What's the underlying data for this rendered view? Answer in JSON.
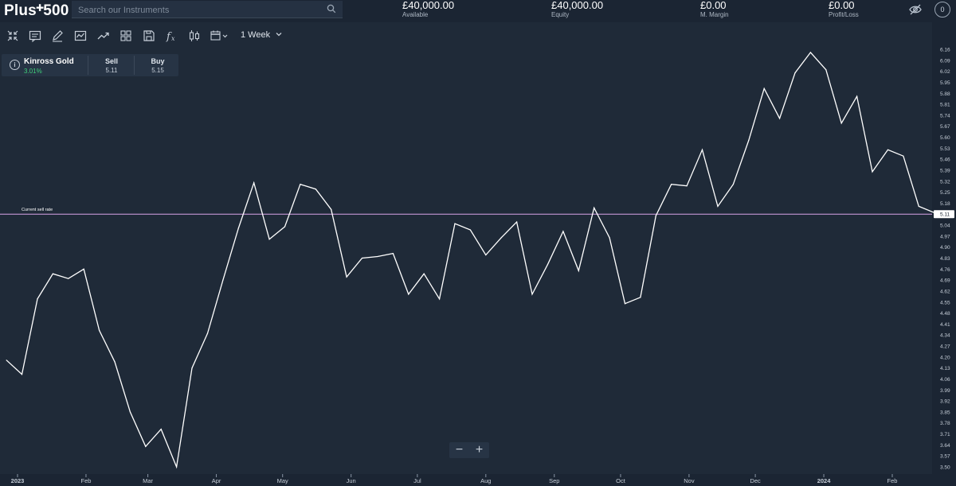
{
  "header": {
    "logo": "Plus500",
    "search_placeholder": "Search our Instruments",
    "metrics": [
      {
        "value": "£40,000.00",
        "label": "Available"
      },
      {
        "value": "£40,000.00",
        "label": "Equity"
      },
      {
        "value": "£0.00",
        "label": "M. Margin"
      },
      {
        "value": "£0.00",
        "label": "Profit/Loss"
      }
    ],
    "notifications_count": "0",
    "icons": [
      "search-icon",
      "eye-off-icon",
      "notification-badge"
    ]
  },
  "toolbar": {
    "icons": [
      "collapse-icon",
      "indicators-icon",
      "draw-icon",
      "chart-type-icon",
      "trend-icon",
      "layout-icon",
      "save-icon",
      "function-icon",
      "candles-icon",
      "calendar-icon"
    ],
    "period": "1 Week"
  },
  "instrument": {
    "name": "Kinross Gold",
    "change": "3.01%",
    "sell_label": "Sell",
    "sell_value": "5.11",
    "buy_label": "Buy",
    "buy_value": "5.15"
  },
  "chart_data": {
    "type": "line",
    "title": "",
    "ylim": [
      3.47,
      6.19
    ],
    "y_ticks": [
      "6.16",
      "6.09",
      "6.02",
      "5.95",
      "5.88",
      "5.81",
      "5.74",
      "5.67",
      "5.60",
      "5.53",
      "5.46",
      "5.39",
      "5.32",
      "5.25",
      "5.18",
      "5.11",
      "5.04",
      "4.97",
      "4.90",
      "4.83",
      "4.76",
      "4.69",
      "4.62",
      "4.55",
      "4.48",
      "4.41",
      "4.34",
      "4.27",
      "4.20",
      "4.13",
      "4.06",
      "3.99",
      "3.92",
      "3.85",
      "3.78",
      "3.71",
      "3.64",
      "3.57",
      "3.50"
    ],
    "x_ticks": [
      {
        "label": "2023",
        "date": "2023-01-01"
      },
      {
        "label": "Feb",
        "date": "2023-02-01"
      },
      {
        "label": "Mar",
        "date": "2023-03-01"
      },
      {
        "label": "Apr",
        "date": "2023-04-01"
      },
      {
        "label": "May",
        "date": "2023-05-01"
      },
      {
        "label": "Jun",
        "date": "2023-06-01"
      },
      {
        "label": "Jul",
        "date": "2023-07-01"
      },
      {
        "label": "Aug",
        "date": "2023-08-01"
      },
      {
        "label": "Sep",
        "date": "2023-09-01"
      },
      {
        "label": "Oct",
        "date": "2023-10-01"
      },
      {
        "label": "Nov",
        "date": "2023-11-01"
      },
      {
        "label": "Dec",
        "date": "2023-12-01"
      },
      {
        "label": "2024",
        "date": "2024-01-01"
      },
      {
        "label": "Feb",
        "date": "2024-02-01"
      }
    ],
    "series": [
      {
        "color": "#ffffff",
        "points": [
          {
            "x": "2022-12-27",
            "y": 4.18
          },
          {
            "x": "2023-01-03",
            "y": 4.09
          },
          {
            "x": "2023-01-10",
            "y": 4.57
          },
          {
            "x": "2023-01-17",
            "y": 4.73
          },
          {
            "x": "2023-01-24",
            "y": 4.7
          },
          {
            "x": "2023-01-31",
            "y": 4.76
          },
          {
            "x": "2023-02-07",
            "y": 4.37
          },
          {
            "x": "2023-02-14",
            "y": 4.17
          },
          {
            "x": "2023-02-21",
            "y": 3.85
          },
          {
            "x": "2023-02-28",
            "y": 3.63
          },
          {
            "x": "2023-03-07",
            "y": 3.74
          },
          {
            "x": "2023-03-14",
            "y": 3.5
          },
          {
            "x": "2023-03-21",
            "y": 4.13
          },
          {
            "x": "2023-03-28",
            "y": 4.35
          },
          {
            "x": "2023-04-04",
            "y": 4.69
          },
          {
            "x": "2023-04-11",
            "y": 5.02
          },
          {
            "x": "2023-04-18",
            "y": 5.31
          },
          {
            "x": "2023-04-25",
            "y": 4.95
          },
          {
            "x": "2023-05-02",
            "y": 5.03
          },
          {
            "x": "2023-05-09",
            "y": 5.3
          },
          {
            "x": "2023-05-16",
            "y": 5.27
          },
          {
            "x": "2023-05-23",
            "y": 5.14
          },
          {
            "x": "2023-05-30",
            "y": 4.71
          },
          {
            "x": "2023-06-06",
            "y": 4.83
          },
          {
            "x": "2023-06-13",
            "y": 4.84
          },
          {
            "x": "2023-06-20",
            "y": 4.86
          },
          {
            "x": "2023-06-27",
            "y": 4.6
          },
          {
            "x": "2023-07-04",
            "y": 4.73
          },
          {
            "x": "2023-07-11",
            "y": 4.57
          },
          {
            "x": "2023-07-18",
            "y": 5.05
          },
          {
            "x": "2023-07-25",
            "y": 5.01
          },
          {
            "x": "2023-08-01",
            "y": 4.85
          },
          {
            "x": "2023-08-08",
            "y": 4.96
          },
          {
            "x": "2023-08-15",
            "y": 5.06
          },
          {
            "x": "2023-08-22",
            "y": 4.6
          },
          {
            "x": "2023-08-29",
            "y": 4.79
          },
          {
            "x": "2023-09-05",
            "y": 5.0
          },
          {
            "x": "2023-09-12",
            "y": 4.75
          },
          {
            "x": "2023-09-19",
            "y": 5.15
          },
          {
            "x": "2023-09-26",
            "y": 4.96
          },
          {
            "x": "2023-10-03",
            "y": 4.54
          },
          {
            "x": "2023-10-10",
            "y": 4.58
          },
          {
            "x": "2023-10-17",
            "y": 5.1
          },
          {
            "x": "2023-10-24",
            "y": 5.3
          },
          {
            "x": "2023-10-31",
            "y": 5.29
          },
          {
            "x": "2023-11-07",
            "y": 5.52
          },
          {
            "x": "2023-11-14",
            "y": 5.16
          },
          {
            "x": "2023-11-21",
            "y": 5.3
          },
          {
            "x": "2023-11-28",
            "y": 5.58
          },
          {
            "x": "2023-12-05",
            "y": 5.91
          },
          {
            "x": "2023-12-12",
            "y": 5.72
          },
          {
            "x": "2023-12-19",
            "y": 6.01
          },
          {
            "x": "2023-12-26",
            "y": 6.14
          },
          {
            "x": "2024-01-02",
            "y": 6.03
          },
          {
            "x": "2024-01-09",
            "y": 5.69
          },
          {
            "x": "2024-01-16",
            "y": 5.86
          },
          {
            "x": "2024-01-23",
            "y": 5.38
          },
          {
            "x": "2024-01-30",
            "y": 5.52
          },
          {
            "x": "2024-02-06",
            "y": 5.48
          },
          {
            "x": "2024-02-13",
            "y": 5.16
          },
          {
            "x": "2024-02-20",
            "y": 5.12
          },
          {
            "x": "2024-02-27",
            "y": 5.11
          }
        ]
      }
    ],
    "current_sell_rate": {
      "label": "Current sell rate",
      "value": 5.11,
      "display": "5.11",
      "color": "#d9a3e8"
    },
    "grid": false,
    "legend": "none"
  },
  "zoom": {
    "minus": "−",
    "plus": "+"
  }
}
